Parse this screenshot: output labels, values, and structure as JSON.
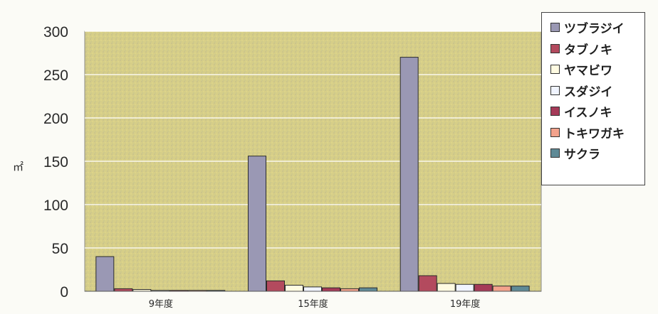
{
  "chart_data": {
    "type": "bar",
    "title": "",
    "xlabel": "",
    "ylabel": "㎡",
    "categories": [
      "9年度",
      "15年度",
      "19年度"
    ],
    "ylim": [
      0,
      300
    ],
    "yticks": [
      "0",
      "50",
      "100",
      "150",
      "200",
      "250",
      "300"
    ],
    "grid": true,
    "legend_position": "top-right",
    "plot_background": "#d8d08a",
    "series": [
      {
        "name": "ツブラジイ",
        "color": "#9a98b4",
        "values": [
          40,
          156,
          270
        ]
      },
      {
        "name": "タブノキ",
        "color": "#b34a5e",
        "values": [
          3,
          12,
          18
        ]
      },
      {
        "name": "ヤマビワ",
        "color": "#fffbe2",
        "values": [
          2,
          7,
          9
        ]
      },
      {
        "name": "スダジイ",
        "color": "#f0f4ff",
        "values": [
          1,
          5,
          8
        ]
      },
      {
        "name": "イスノキ",
        "color": "#a53a58",
        "values": [
          1,
          4,
          8
        ]
      },
      {
        "name": "トキワガキ",
        "color": "#f3a28c",
        "values": [
          1,
          3,
          6
        ]
      },
      {
        "name": "サクラ",
        "color": "#5f8a96",
        "values": [
          1,
          4,
          6
        ]
      }
    ]
  }
}
